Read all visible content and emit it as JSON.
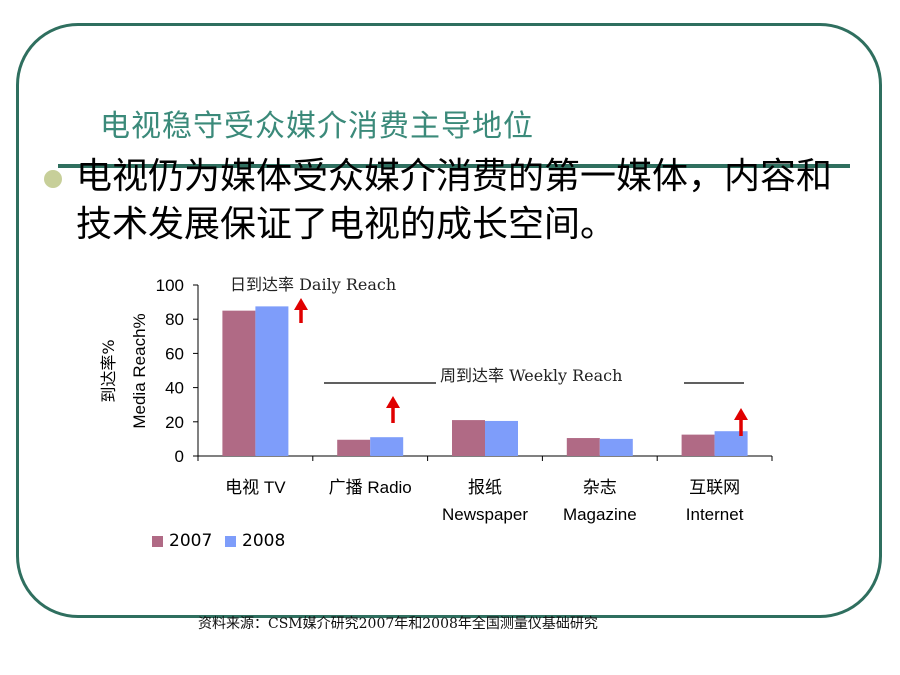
{
  "slide": {
    "title": "电视稳守受众媒介消费主导地位",
    "bullet": "电视仍为媒体受众媒介消费的第一媒体，内容和技术发展保证了电视的成长空间。",
    "source": "资料来源：CSM媒介研究2007年和2008年全国测量仪基础研究"
  },
  "chart_data": {
    "type": "bar",
    "categories": [
      "电视 TV",
      "广播 Radio",
      "报纸 Newspaper",
      "杂志 Magazine",
      "互联网 Internet"
    ],
    "category_lines": [
      [
        "电视 TV"
      ],
      [
        "广播 Radio"
      ],
      [
        "报纸",
        "Newspaper"
      ],
      [
        "杂志",
        "Magazine"
      ],
      [
        "互联网",
        "Internet"
      ]
    ],
    "series": [
      {
        "name": "2007",
        "values": [
          85,
          9.5,
          21,
          10.5,
          12.5
        ],
        "color": "#b06a85"
      },
      {
        "name": "2008",
        "values": [
          87.5,
          11,
          20.5,
          10,
          14.5
        ],
        "color": "#7e9dfa"
      }
    ],
    "ylim": [
      0,
      100
    ],
    "yticks": [
      0,
      20,
      40,
      60,
      80,
      100
    ],
    "ylabel_cn": "到达率%",
    "ylabel_en": "Media Reach%",
    "annotations": {
      "daily": "日到达率    Daily Reach",
      "weekly": "周到达率    Weekly Reach"
    },
    "up_arrow_color": "#e00000",
    "legend": "bottom-left"
  }
}
